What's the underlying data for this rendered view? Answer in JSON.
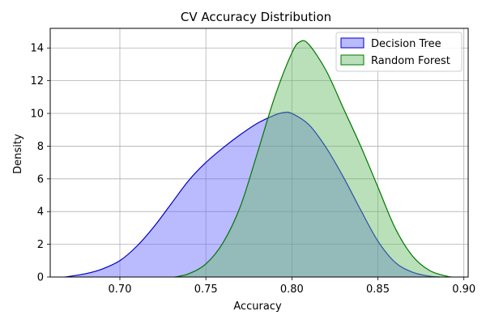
{
  "chart_data": {
    "type": "area",
    "title": "CV Accuracy Distribution",
    "xlabel": "Accuracy",
    "ylabel": "Density",
    "xlim": [
      0.6595,
      0.9025
    ],
    "ylim": [
      0,
      15.2
    ],
    "x_ticks": [
      0.7,
      0.75,
      0.8,
      0.85,
      0.9
    ],
    "x_tick_labels": [
      "0.70",
      "0.75",
      "0.80",
      "0.85",
      "0.90"
    ],
    "y_ticks": [
      0,
      2,
      4,
      6,
      8,
      10,
      12,
      14
    ],
    "y_tick_labels": [
      "0",
      "2",
      "4",
      "6",
      "8",
      "10",
      "12",
      "14"
    ],
    "grid": true,
    "legend_position": "top-right",
    "series": [
      {
        "name": "Decision Tree",
        "line_color": "#0000cc",
        "fill_color": "#6666ff",
        "fill_opacity": 0.45,
        "x": [
          0.668,
          0.68,
          0.69,
          0.7,
          0.71,
          0.72,
          0.73,
          0.74,
          0.75,
          0.76,
          0.77,
          0.78,
          0.79,
          0.795,
          0.8,
          0.81,
          0.82,
          0.83,
          0.84,
          0.85,
          0.86,
          0.87,
          0.88,
          0.886
        ],
        "y": [
          0.0,
          0.2,
          0.5,
          1.0,
          1.9,
          3.1,
          4.5,
          5.9,
          7.0,
          7.9,
          8.7,
          9.4,
          9.9,
          10.05,
          10.0,
          9.3,
          7.9,
          6.1,
          4.1,
          2.2,
          0.9,
          0.3,
          0.05,
          0.0
        ]
      },
      {
        "name": "Random Forest",
        "line_color": "#007700",
        "fill_color": "#66bb66",
        "fill_opacity": 0.45,
        "x": [
          0.732,
          0.74,
          0.75,
          0.76,
          0.77,
          0.78,
          0.79,
          0.8,
          0.805,
          0.81,
          0.82,
          0.83,
          0.84,
          0.85,
          0.86,
          0.87,
          0.88,
          0.89,
          0.893
        ],
        "y": [
          0.0,
          0.2,
          0.8,
          2.1,
          4.3,
          7.6,
          11.0,
          13.7,
          14.4,
          14.2,
          12.6,
          10.3,
          8.0,
          5.5,
          3.0,
          1.3,
          0.4,
          0.05,
          0.0
        ]
      }
    ]
  }
}
